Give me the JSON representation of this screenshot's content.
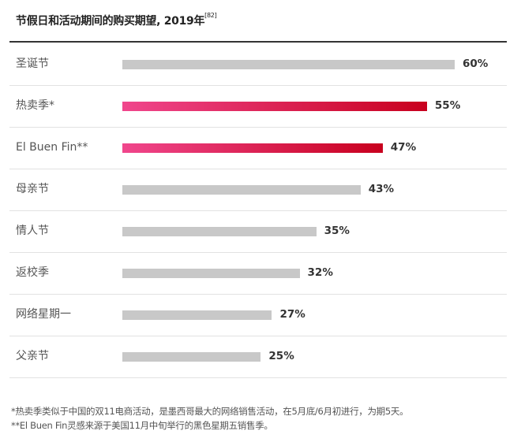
{
  "chart_data": {
    "type": "bar",
    "orientation": "horizontal",
    "title": "节假日和活动期间的购买期望, 2019年",
    "title_ref": "[82]",
    "categories": [
      "圣诞节",
      "热卖季*",
      "El Buen Fin**",
      "母亲节",
      "情人节",
      "返校季",
      "网络星期一",
      "父亲节"
    ],
    "values": [
      60,
      55,
      47,
      43,
      35,
      32,
      27,
      25
    ],
    "value_labels": [
      "60%",
      "55%",
      "47%",
      "43%",
      "35%",
      "32%",
      "27%",
      "25%"
    ],
    "highlighted": [
      false,
      true,
      true,
      false,
      false,
      false,
      false,
      false
    ],
    "xlim": [
      0,
      100
    ],
    "grid": false,
    "colors": {
      "default": "#c8c8c8",
      "highlight_start": "#f0468c",
      "highlight_end": "#c8001e"
    }
  },
  "footnotes": [
    "*热卖季类似于中国的双11电商活动，是墨西哥最大的网络销售活动，在5月底/6月初进行，为期5天。",
    "**El Buen Fin灵感来源于美国11月中旬举行的黑色星期五销售季。"
  ]
}
